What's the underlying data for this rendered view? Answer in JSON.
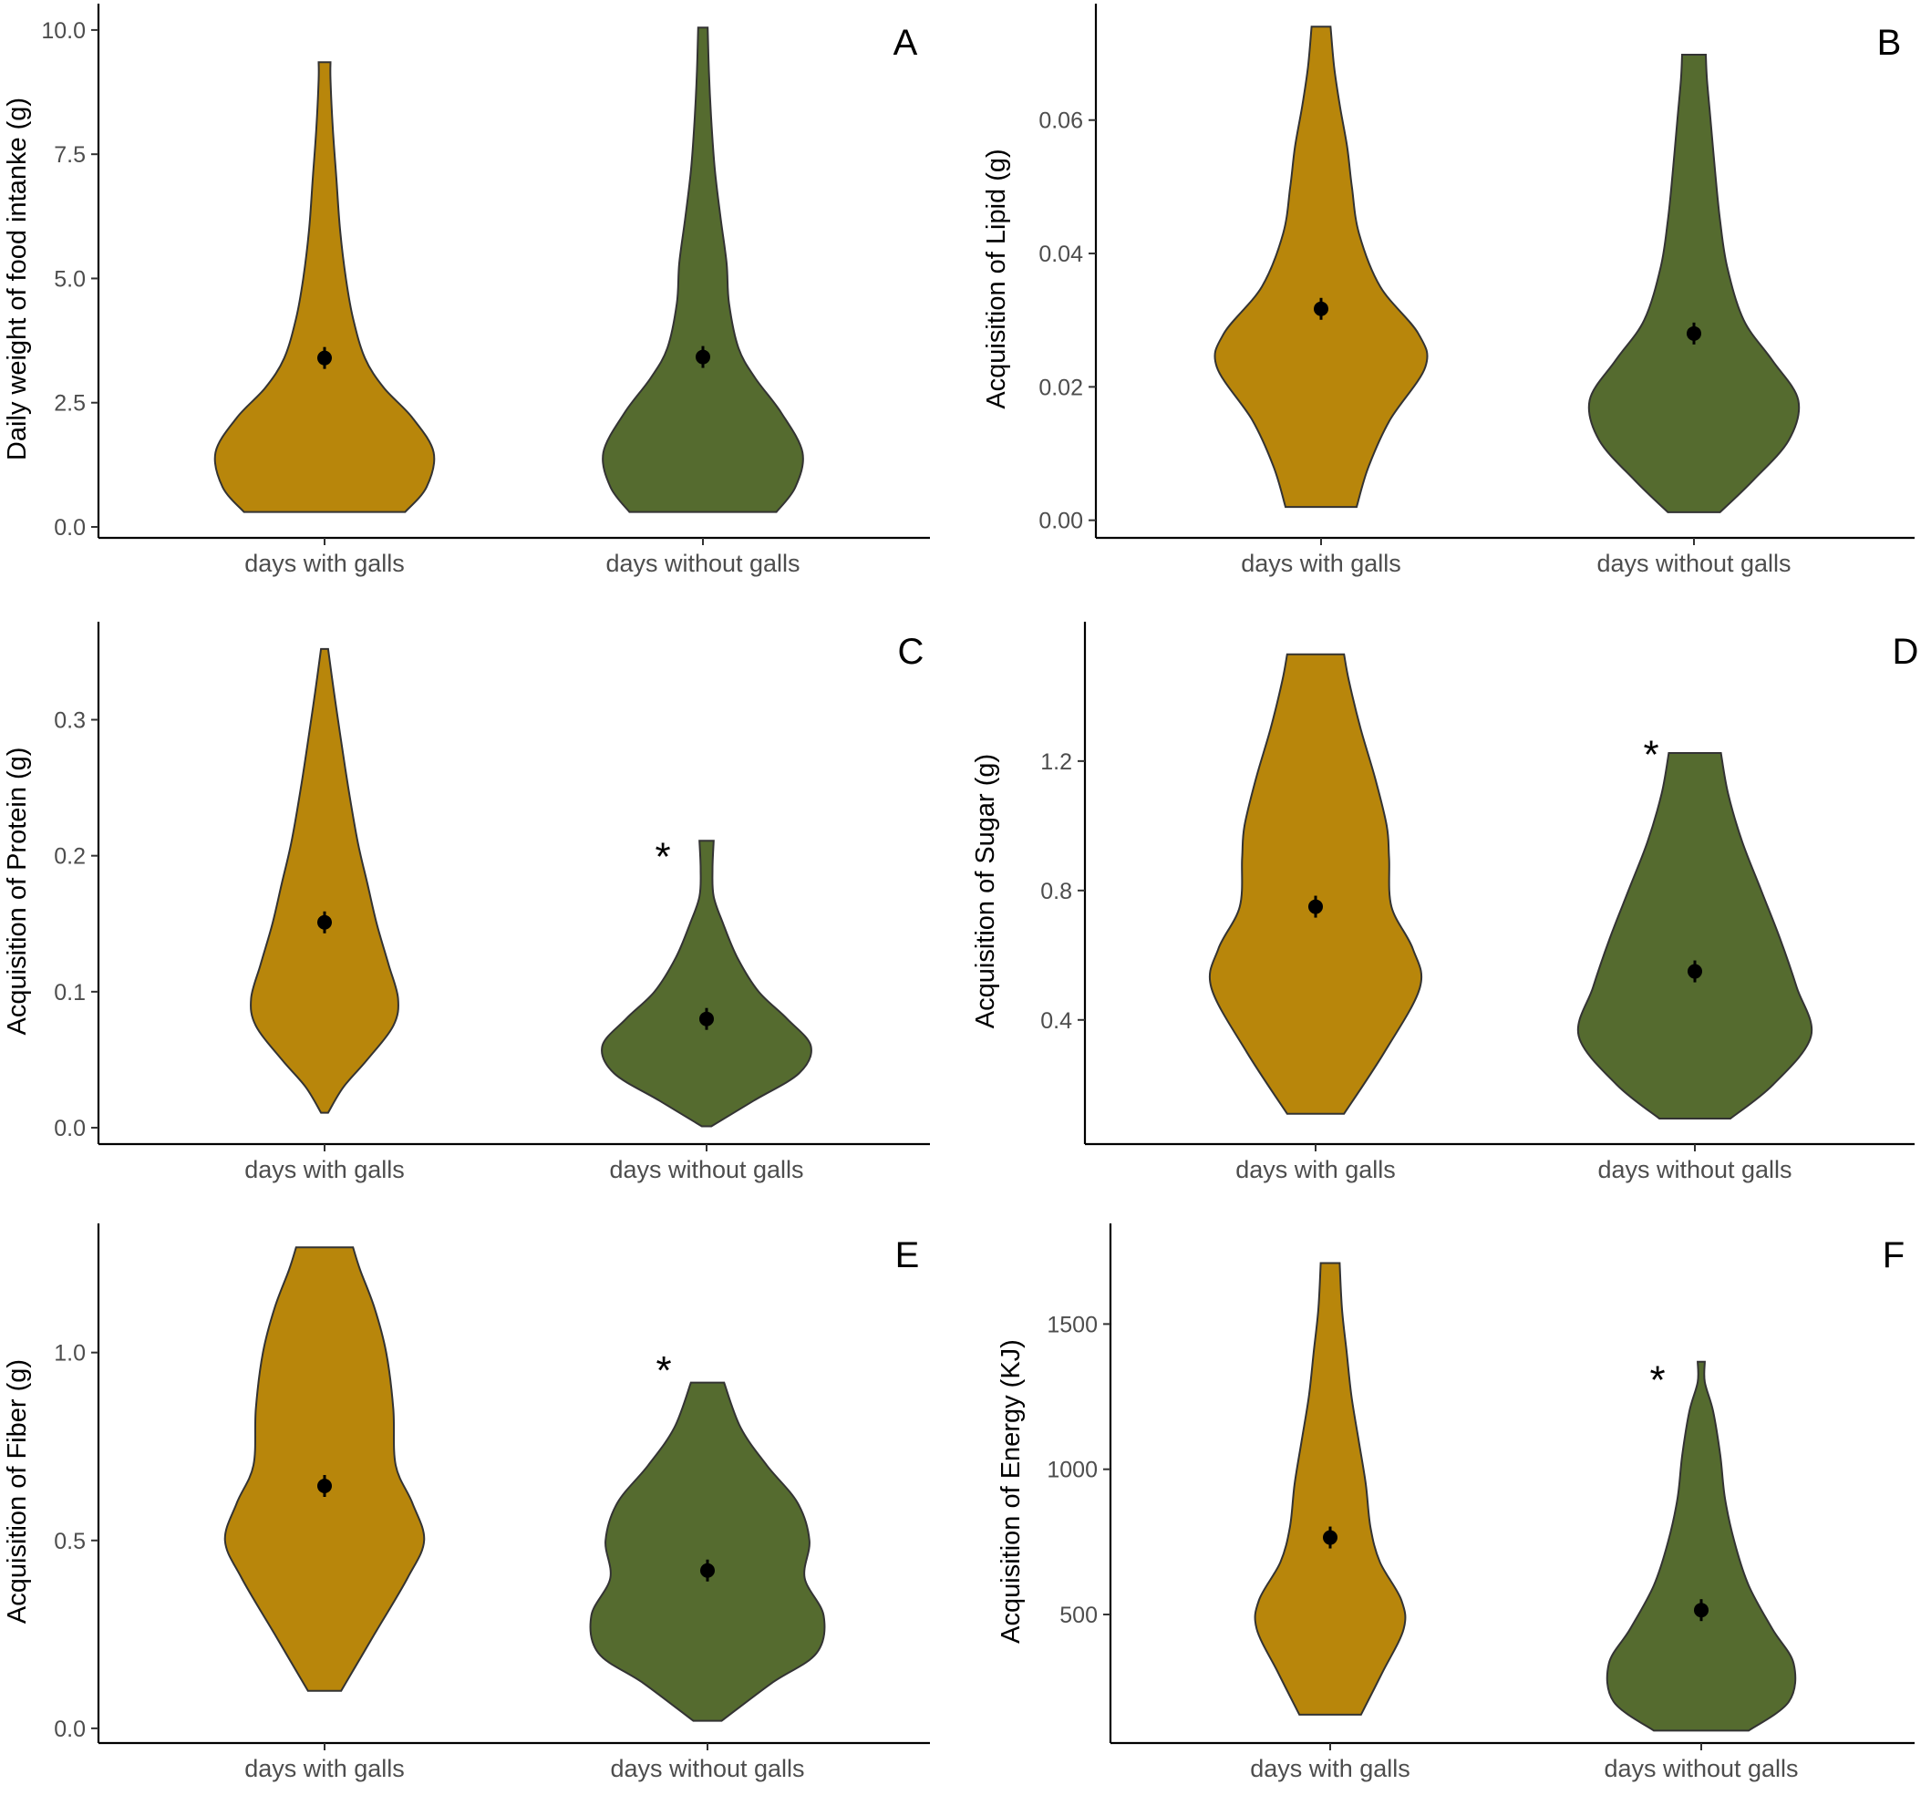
{
  "colors": {
    "with_galls": "#B8860B",
    "without_galls": "#556B2F",
    "outline": "#333333",
    "point": "#000000"
  },
  "chart_data": [
    {
      "type": "violin",
      "panel": "A",
      "ylabel": "Daily weight of food intanke (g)",
      "ylim": [
        0,
        10.2
      ],
      "yticks": [
        0,
        2.5,
        5,
        7.5,
        10
      ],
      "ytick_labels": [
        "0.0",
        "2.5",
        "5.0",
        "7.5",
        "10.0"
      ],
      "categories": [
        "days with galls",
        "days without galls"
      ],
      "series": [
        {
          "category": "days with galls",
          "mean": 3.4,
          "min": 0.3,
          "max": 9.35,
          "density": [
            [
              0.3,
              0.68
            ],
            [
              0.8,
              0.86
            ],
            [
              1.5,
              0.92
            ],
            [
              2.2,
              0.74
            ],
            [
              2.8,
              0.5
            ],
            [
              3.4,
              0.34
            ],
            [
              4.2,
              0.24
            ],
            [
              5.0,
              0.18
            ],
            [
              6.0,
              0.13
            ],
            [
              7.0,
              0.1
            ],
            [
              8.0,
              0.07
            ],
            [
              9.0,
              0.05
            ],
            [
              9.35,
              0.05
            ]
          ]
        },
        {
          "category": "days without galls",
          "mean": 3.42,
          "min": 0.3,
          "max": 10.05,
          "density": [
            [
              0.3,
              0.62
            ],
            [
              0.8,
              0.78
            ],
            [
              1.5,
              0.84
            ],
            [
              2.3,
              0.66
            ],
            [
              3.0,
              0.44
            ],
            [
              3.6,
              0.3
            ],
            [
              4.5,
              0.22
            ],
            [
              5.3,
              0.2
            ],
            [
              6.2,
              0.15
            ],
            [
              7.2,
              0.1
            ],
            [
              8.2,
              0.07
            ],
            [
              9.2,
              0.05
            ],
            [
              10.05,
              0.04
            ]
          ]
        }
      ]
    },
    {
      "type": "violin",
      "panel": "B",
      "ylabel": "Acquisition of Lipid (g)",
      "ylim": [
        -0.001,
        0.075
      ],
      "yticks": [
        0,
        0.02,
        0.04,
        0.06
      ],
      "ytick_labels": [
        "0.00",
        "0.02",
        "0.04",
        "0.06"
      ],
      "categories": [
        "days with galls",
        "days without galls"
      ],
      "series": [
        {
          "category": "days with galls",
          "mean": 0.0317,
          "min": 0.002,
          "max": 0.074,
          "density": [
            [
              0.002,
              0.3
            ],
            [
              0.008,
              0.4
            ],
            [
              0.015,
              0.58
            ],
            [
              0.023,
              0.88
            ],
            [
              0.028,
              0.82
            ],
            [
              0.035,
              0.5
            ],
            [
              0.043,
              0.32
            ],
            [
              0.05,
              0.26
            ],
            [
              0.056,
              0.22
            ],
            [
              0.062,
              0.16
            ],
            [
              0.068,
              0.11
            ],
            [
              0.074,
              0.08
            ]
          ]
        },
        {
          "category": "days without galls",
          "mean": 0.028,
          "min": 0.0012,
          "max": 0.0698,
          "density": [
            [
              0.0012,
              0.22
            ],
            [
              0.006,
              0.5
            ],
            [
              0.012,
              0.8
            ],
            [
              0.018,
              0.88
            ],
            [
              0.024,
              0.66
            ],
            [
              0.03,
              0.42
            ],
            [
              0.038,
              0.28
            ],
            [
              0.045,
              0.22
            ],
            [
              0.052,
              0.18
            ],
            [
              0.06,
              0.14
            ],
            [
              0.066,
              0.11
            ],
            [
              0.0698,
              0.1
            ]
          ]
        }
      ]
    },
    {
      "type": "violin",
      "panel": "C",
      "ylabel": "Acquisition of Protein (g)",
      "ylim": [
        -0.004,
        0.36
      ],
      "yticks": [
        0,
        0.1,
        0.2,
        0.3
      ],
      "ytick_labels": [
        "0.0",
        "0.1",
        "0.2",
        "0.3"
      ],
      "categories": [
        "days with galls",
        "days without galls"
      ],
      "annotations": [
        {
          "text": "*",
          "category": "days without galls",
          "y": 0.204
        }
      ],
      "series": [
        {
          "category": "days with galls",
          "mean": 0.151,
          "min": 0.011,
          "max": 0.352,
          "density": [
            [
              0.011,
              0.03
            ],
            [
              0.03,
              0.16
            ],
            [
              0.05,
              0.36
            ],
            [
              0.075,
              0.58
            ],
            [
              0.095,
              0.62
            ],
            [
              0.12,
              0.54
            ],
            [
              0.15,
              0.44
            ],
            [
              0.18,
              0.36
            ],
            [
              0.21,
              0.28
            ],
            [
              0.25,
              0.2
            ],
            [
              0.29,
              0.13
            ],
            [
              0.32,
              0.08
            ],
            [
              0.352,
              0.03
            ]
          ]
        },
        {
          "category": "days without galls",
          "mean": 0.08,
          "min": 0.001,
          "max": 0.211,
          "density": [
            [
              0.001,
              0.04
            ],
            [
              0.02,
              0.4
            ],
            [
              0.04,
              0.78
            ],
            [
              0.06,
              0.88
            ],
            [
              0.08,
              0.68
            ],
            [
              0.1,
              0.44
            ],
            [
              0.125,
              0.26
            ],
            [
              0.15,
              0.14
            ],
            [
              0.17,
              0.06
            ],
            [
              0.19,
              0.05
            ],
            [
              0.211,
              0.06
            ]
          ]
        }
      ]
    },
    {
      "type": "violin",
      "panel": "D",
      "ylabel": "Acquisition of Sugar (g)",
      "ylim": [
        0.05,
        1.58
      ],
      "yticks": [
        0.4,
        0.8,
        1.2
      ],
      "ytick_labels": [
        "0.4",
        "0.8",
        "1.2"
      ],
      "categories": [
        "days with galls",
        "days without galls"
      ],
      "annotations": [
        {
          "text": "*",
          "category": "days without galls",
          "y": 1.24
        }
      ],
      "series": [
        {
          "category": "days with galls",
          "mean": 0.75,
          "min": 0.11,
          "max": 1.53,
          "density": [
            [
              0.11,
              0.24
            ],
            [
              0.3,
              0.58
            ],
            [
              0.5,
              0.88
            ],
            [
              0.62,
              0.82
            ],
            [
              0.75,
              0.64
            ],
            [
              0.9,
              0.62
            ],
            [
              1.0,
              0.6
            ],
            [
              1.15,
              0.5
            ],
            [
              1.3,
              0.38
            ],
            [
              1.45,
              0.28
            ],
            [
              1.53,
              0.24
            ]
          ]
        },
        {
          "category": "days without galls",
          "mean": 0.55,
          "min": 0.095,
          "max": 1.225,
          "density": [
            [
              0.095,
              0.3
            ],
            [
              0.2,
              0.66
            ],
            [
              0.35,
              0.98
            ],
            [
              0.5,
              0.86
            ],
            [
              0.65,
              0.72
            ],
            [
              0.8,
              0.56
            ],
            [
              0.95,
              0.4
            ],
            [
              1.1,
              0.28
            ],
            [
              1.225,
              0.22
            ]
          ]
        }
      ]
    },
    {
      "type": "violin",
      "panel": "E",
      "ylabel": "Acquisition of Fiber (g)",
      "ylim": [
        -0.01,
        1.3
      ],
      "yticks": [
        0,
        0.5,
        1.0
      ],
      "ytick_labels": [
        "0.0",
        "0.5",
        "1.0"
      ],
      "categories": [
        "days with galls",
        "days without galls"
      ],
      "annotations": [
        {
          "text": "*",
          "category": "days without galls",
          "y": 0.97
        }
      ],
      "series": [
        {
          "category": "days with galls",
          "mean": 0.645,
          "min": 0.1,
          "max": 1.28,
          "density": [
            [
              0.1,
              0.14
            ],
            [
              0.25,
              0.42
            ],
            [
              0.4,
              0.7
            ],
            [
              0.5,
              0.84
            ],
            [
              0.6,
              0.74
            ],
            [
              0.7,
              0.6
            ],
            [
              0.85,
              0.58
            ],
            [
              1.0,
              0.52
            ],
            [
              1.12,
              0.42
            ],
            [
              1.22,
              0.3
            ],
            [
              1.28,
              0.24
            ]
          ]
        },
        {
          "category": "days without galls",
          "mean": 0.42,
          "min": 0.02,
          "max": 0.92,
          "density": [
            [
              0.02,
              0.12
            ],
            [
              0.12,
              0.54
            ],
            [
              0.2,
              0.92
            ],
            [
              0.3,
              0.98
            ],
            [
              0.4,
              0.82
            ],
            [
              0.5,
              0.86
            ],
            [
              0.6,
              0.76
            ],
            [
              0.7,
              0.5
            ],
            [
              0.8,
              0.28
            ],
            [
              0.92,
              0.14
            ]
          ]
        }
      ]
    },
    {
      "type": "violin",
      "panel": "F",
      "ylabel": "Acquisition of Energy (KJ)",
      "ylim": [
        95,
        1790
      ],
      "yticks": [
        500,
        1000,
        1500
      ],
      "ytick_labels": [
        "500",
        "1000",
        "1500"
      ],
      "categories": [
        "days with galls",
        "days without galls"
      ],
      "annotations": [
        {
          "text": "*",
          "category": "days without galls",
          "y": 1330
        }
      ],
      "series": [
        {
          "category": "days with galls",
          "mean": 765,
          "min": 155,
          "max": 1710,
          "density": [
            [
              155,
              0.26
            ],
            [
              300,
              0.44
            ],
            [
              450,
              0.62
            ],
            [
              550,
              0.6
            ],
            [
              680,
              0.42
            ],
            [
              800,
              0.34
            ],
            [
              950,
              0.3
            ],
            [
              1100,
              0.24
            ],
            [
              1250,
              0.18
            ],
            [
              1400,
              0.14
            ],
            [
              1550,
              0.1
            ],
            [
              1710,
              0.08
            ]
          ]
        },
        {
          "category": "days without galls",
          "mean": 515,
          "min": 100,
          "max": 1370,
          "density": [
            [
              100,
              0.4
            ],
            [
              200,
              0.74
            ],
            [
              330,
              0.78
            ],
            [
              450,
              0.6
            ],
            [
              600,
              0.4
            ],
            [
              750,
              0.28
            ],
            [
              900,
              0.2
            ],
            [
              1050,
              0.16
            ],
            [
              1200,
              0.1
            ],
            [
              1300,
              0.03
            ],
            [
              1370,
              0.03
            ]
          ]
        }
      ]
    }
  ]
}
